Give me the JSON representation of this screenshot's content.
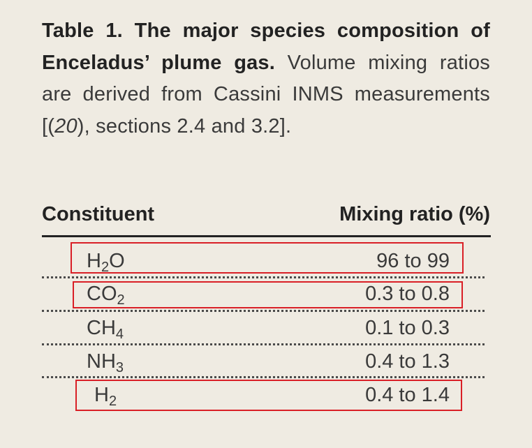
{
  "caption": {
    "title": "Table 1. The major species composition of Enceladus’ plume gas.",
    "text_before_ref": " Volume mixing ratios are derived from Cassini INMS measurements [(",
    "ref": "20",
    "text_after_ref": "), sections 2.4 and 3.2]."
  },
  "table": {
    "headers": [
      "Constituent",
      "Mixing ratio (%)"
    ],
    "rows": [
      {
        "base": "H",
        "sub": "2",
        "tail": "O",
        "value": "96 to 99",
        "highlighted": true
      },
      {
        "base": "CO",
        "sub": "2",
        "tail": "",
        "value": "0.3 to 0.8",
        "highlighted": true
      },
      {
        "base": "CH",
        "sub": "4",
        "tail": "",
        "value": "0.1 to 0.3",
        "highlighted": false
      },
      {
        "base": "NH",
        "sub": "3",
        "tail": "",
        "value": "0.4 to 1.3",
        "highlighted": false
      },
      {
        "base": "H",
        "sub": "2",
        "tail": "",
        "value": "0.4 to 1.4",
        "highlighted": true
      }
    ]
  },
  "colors": {
    "background": "#efebe2",
    "text": "#222222",
    "highlight": "#d91f26"
  }
}
